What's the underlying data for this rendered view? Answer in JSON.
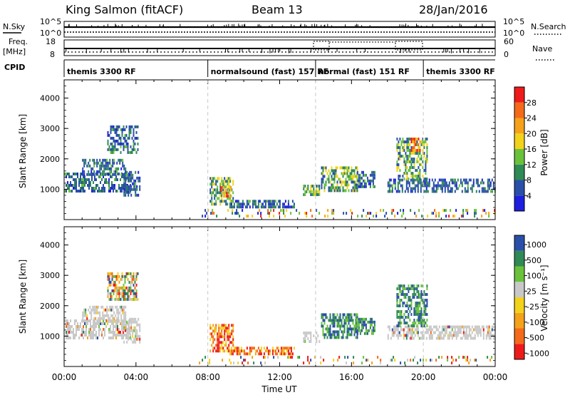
{
  "header": {
    "station": "King Salmon (fitACF)",
    "beam": "Beam 13",
    "date": "28/Jan/2016"
  },
  "nsky_strip": {
    "left_label": "N.Sky",
    "right_label": "N.Search",
    "left_ticks": [
      "10^5",
      "10^0"
    ],
    "right_ticks": [
      "10^5",
      "10^0"
    ]
  },
  "freq_strip": {
    "left_label_1": "Freq.",
    "left_label_2": "[MHz]",
    "left_ticks": [
      "18",
      "8"
    ],
    "right_label": "Nave",
    "right_ticks": [
      "60",
      "0"
    ]
  },
  "cpid": {
    "label": "CPID",
    "segments": [
      {
        "name": "themis 3300 RF",
        "start_hour": 0,
        "end_hour": 8
      },
      {
        "name": "normalsound (fast) 157 RF",
        "start_hour": 8,
        "end_hour": 14
      },
      {
        "name": "normal (fast) 151 RF",
        "start_hour": 14,
        "end_hour": 20
      },
      {
        "name": "themis 3300 RF",
        "start_hour": 20,
        "end_hour": 24
      }
    ]
  },
  "x_axis": {
    "label": "Time UT",
    "ticks": [
      "00:00",
      "04:00",
      "08:00",
      "12:00",
      "16:00",
      "20:00",
      "00:00"
    ],
    "range_hours": [
      0,
      24
    ]
  },
  "colors": {
    "power": [
      "#1f1fe0",
      "#2a4fa8",
      "#2f8a55",
      "#6ac23b",
      "#f2d21a",
      "#f5a21a",
      "#f46a1a",
      "#ef1a1a"
    ],
    "velocity": [
      "#ee1a1a",
      "#f56a1a",
      "#f3a21a",
      "#f2d21a",
      "#c8c8c8",
      "#6ac23b",
      "#2f8a55",
      "#2a4fa8"
    ],
    "dashed_line": "#c8c8c8"
  },
  "chart_data": [
    {
      "type": "heatmap",
      "title": "Power",
      "ylabel": "Slant Range [km]",
      "xlabel": "",
      "yticks": [
        "1000",
        "2000",
        "3000",
        "4000"
      ],
      "ylim": [
        0,
        4600
      ],
      "colorbar_label": "Power [dB]",
      "colorbar_ticks": [
        "4",
        "8",
        "12",
        "16",
        "20",
        "24",
        "28"
      ],
      "colorbar_range": [
        0,
        32
      ],
      "regions": [
        {
          "t": [
            0.0,
            3.7
          ],
          "r": [
            950,
            1550
          ],
          "level": "low"
        },
        {
          "t": [
            1.0,
            3.4
          ],
          "r": [
            1500,
            2000
          ],
          "level": "low"
        },
        {
          "t": [
            2.4,
            4.1
          ],
          "r": [
            2200,
            3100
          ],
          "level": "low"
        },
        {
          "t": [
            3.3,
            4.2
          ],
          "r": [
            800,
            1600
          ],
          "level": "low"
        },
        {
          "t": [
            8.1,
            9.4
          ],
          "r": [
            500,
            1400
          ],
          "level": "mid"
        },
        {
          "t": [
            8.7,
            9.3
          ],
          "r": [
            800,
            1100
          ],
          "level": "high"
        },
        {
          "t": [
            9.2,
            12.8
          ],
          "r": [
            450,
            650
          ],
          "level": "low"
        },
        {
          "t": [
            13.3,
            14.2
          ],
          "r": [
            850,
            1150
          ],
          "level": "mid"
        },
        {
          "t": [
            14.3,
            16.3
          ],
          "r": [
            950,
            1750
          ],
          "level": "mid"
        },
        {
          "t": [
            16.3,
            17.3
          ],
          "r": [
            1050,
            1600
          ],
          "level": "low"
        },
        {
          "t": [
            18.0,
            24.0
          ],
          "r": [
            950,
            1350
          ],
          "level": "low"
        },
        {
          "t": [
            18.5,
            20.2
          ],
          "r": [
            1300,
            2700
          ],
          "level": "mid"
        },
        {
          "t": [
            19.3,
            19.8
          ],
          "r": [
            2300,
            2700
          ],
          "level": "high"
        },
        {
          "t": [
            7.5,
            24.0
          ],
          "r": [
            150,
            350
          ],
          "level": "noise"
        }
      ]
    },
    {
      "type": "heatmap",
      "title": "Velocity",
      "ylabel": "Slant Range [km]",
      "xlabel": "Time UT",
      "yticks": [
        "1000",
        "2000",
        "3000",
        "4000"
      ],
      "ylim": [
        0,
        4600
      ],
      "colorbar_label": "Velocity [m s⁻¹]",
      "colorbar_ticks": [
        "1000",
        "500",
        "100",
        "25",
        "-25",
        "-100",
        "-500",
        "-1000"
      ],
      "colorbar_range": [
        -1000,
        1000
      ],
      "regions": [
        {
          "t": [
            0.0,
            3.7
          ],
          "r": [
            950,
            1550
          ],
          "level": "ground"
        },
        {
          "t": [
            1.0,
            3.4
          ],
          "r": [
            1500,
            2000
          ],
          "level": "ground"
        },
        {
          "t": [
            2.4,
            4.1
          ],
          "r": [
            2200,
            3100
          ],
          "level": "mixed"
        },
        {
          "t": [
            3.3,
            4.2
          ],
          "r": [
            800,
            1600
          ],
          "level": "ground"
        },
        {
          "t": [
            8.1,
            9.4
          ],
          "r": [
            500,
            1400
          ],
          "level": "negative"
        },
        {
          "t": [
            9.2,
            12.8
          ],
          "r": [
            450,
            650
          ],
          "level": "negative"
        },
        {
          "t": [
            13.3,
            14.2
          ],
          "r": [
            850,
            1150
          ],
          "level": "ground"
        },
        {
          "t": [
            14.3,
            16.3
          ],
          "r": [
            950,
            1750
          ],
          "level": "positive"
        },
        {
          "t": [
            16.3,
            17.3
          ],
          "r": [
            1050,
            1600
          ],
          "level": "positive"
        },
        {
          "t": [
            18.0,
            24.0
          ],
          "r": [
            950,
            1350
          ],
          "level": "ground"
        },
        {
          "t": [
            18.5,
            20.2
          ],
          "r": [
            1300,
            2700
          ],
          "level": "positive"
        },
        {
          "t": [
            7.5,
            24.0
          ],
          "r": [
            150,
            350
          ],
          "level": "noise"
        }
      ]
    }
  ]
}
